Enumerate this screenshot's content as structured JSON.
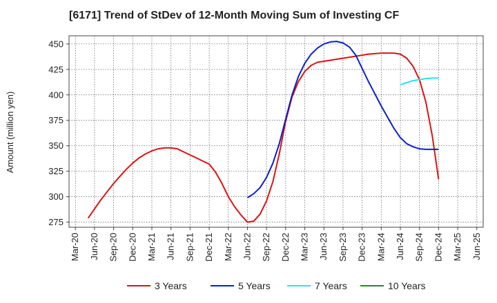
{
  "chart_data": {
    "type": "line",
    "title": "[6171]  Trend of StDev of 12-Month Moving Sum of Investing CF",
    "xlabel": "",
    "ylabel": "Amount (million yen)",
    "ylim": [
      270,
      458
    ],
    "yticks": [
      275,
      300,
      325,
      350,
      375,
      400,
      425,
      450
    ],
    "x_range": [
      "2020-02",
      "2025-07"
    ],
    "xticks": [
      "Mar-20",
      "Jun-20",
      "Sep-20",
      "Dec-20",
      "Mar-21",
      "Jun-21",
      "Sep-21",
      "Dec-21",
      "Mar-22",
      "Jun-22",
      "Sep-22",
      "Dec-22",
      "Mar-23",
      "Jun-23",
      "Sep-23",
      "Dec-23",
      "Mar-24",
      "Jun-24",
      "Sep-24",
      "Dec-24",
      "Mar-25",
      "Jun-25"
    ],
    "grid": true,
    "legend_position": "bottom",
    "series": [
      {
        "name": "3 Years",
        "color": "#dd1111",
        "points": [
          [
            "2020-05",
            279
          ],
          [
            "2020-06",
            288
          ],
          [
            "2020-07",
            297
          ],
          [
            "2020-08",
            305
          ],
          [
            "2020-09",
            313
          ],
          [
            "2020-10",
            320
          ],
          [
            "2020-11",
            327
          ],
          [
            "2020-12",
            333
          ],
          [
            "2021-01",
            338
          ],
          [
            "2021-02",
            342
          ],
          [
            "2021-03",
            345
          ],
          [
            "2021-04",
            347
          ],
          [
            "2021-05",
            348
          ],
          [
            "2021-06",
            348
          ],
          [
            "2021-07",
            347
          ],
          [
            "2021-08",
            344
          ],
          [
            "2021-09",
            341
          ],
          [
            "2021-10",
            338
          ],
          [
            "2021-11",
            335
          ],
          [
            "2021-12",
            332
          ],
          [
            "2022-01",
            324
          ],
          [
            "2022-02",
            313
          ],
          [
            "2022-03",
            300
          ],
          [
            "2022-04",
            290
          ],
          [
            "2022-05",
            282
          ],
          [
            "2022-06",
            275
          ],
          [
            "2022-07",
            276
          ],
          [
            "2022-08",
            283
          ],
          [
            "2022-09",
            296
          ],
          [
            "2022-10",
            315
          ],
          [
            "2022-11",
            342
          ],
          [
            "2022-12",
            374
          ],
          [
            "2023-01",
            398
          ],
          [
            "2023-02",
            413
          ],
          [
            "2023-03",
            423
          ],
          [
            "2023-04",
            429
          ],
          [
            "2023-05",
            432
          ],
          [
            "2023-06",
            433
          ],
          [
            "2023-07",
            434
          ],
          [
            "2023-08",
            435
          ],
          [
            "2023-09",
            436
          ],
          [
            "2023-10",
            437
          ],
          [
            "2023-11",
            438
          ],
          [
            "2023-12",
            439
          ],
          [
            "2024-01",
            440
          ],
          [
            "2024-02",
            440.5
          ],
          [
            "2024-03",
            441
          ],
          [
            "2024-04",
            441
          ],
          [
            "2024-05",
            441
          ],
          [
            "2024-06",
            440
          ],
          [
            "2024-07",
            436
          ],
          [
            "2024-08",
            428
          ],
          [
            "2024-09",
            415
          ],
          [
            "2024-10",
            393
          ],
          [
            "2024-11",
            360
          ],
          [
            "2024-12",
            317
          ]
        ]
      },
      {
        "name": "5 Years",
        "color": "#0a1fcc",
        "points": [
          [
            "2022-06",
            299
          ],
          [
            "2022-07",
            303
          ],
          [
            "2022-08",
            309
          ],
          [
            "2022-09",
            319
          ],
          [
            "2022-10",
            333
          ],
          [
            "2022-11",
            352
          ],
          [
            "2022-12",
            376
          ],
          [
            "2023-01",
            400
          ],
          [
            "2023-02",
            418
          ],
          [
            "2023-03",
            431
          ],
          [
            "2023-04",
            440
          ],
          [
            "2023-05",
            446
          ],
          [
            "2023-06",
            450
          ],
          [
            "2023-07",
            452
          ],
          [
            "2023-08",
            452.5
          ],
          [
            "2023-09",
            451
          ],
          [
            "2023-10",
            447
          ],
          [
            "2023-11",
            439
          ],
          [
            "2023-12",
            426
          ],
          [
            "2024-01",
            413
          ],
          [
            "2024-02",
            401
          ],
          [
            "2024-03",
            389
          ],
          [
            "2024-04",
            378
          ],
          [
            "2024-05",
            367
          ],
          [
            "2024-06",
            358
          ],
          [
            "2024-07",
            352
          ],
          [
            "2024-08",
            349
          ],
          [
            "2024-09",
            347
          ],
          [
            "2024-10",
            346.5
          ],
          [
            "2024-11",
            346.5
          ],
          [
            "2024-12",
            346.5
          ]
        ]
      },
      {
        "name": "7 Years",
        "color": "#22e5ee",
        "points": [
          [
            "2024-06",
            410
          ],
          [
            "2024-07",
            412
          ],
          [
            "2024-08",
            414
          ],
          [
            "2024-09",
            415
          ],
          [
            "2024-10",
            416
          ],
          [
            "2024-11",
            416.5
          ],
          [
            "2024-12",
            416.5
          ]
        ]
      },
      {
        "name": "10 Years",
        "color": "#228822",
        "points": []
      }
    ]
  }
}
